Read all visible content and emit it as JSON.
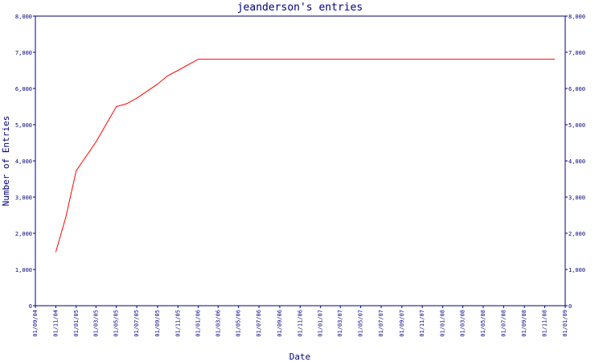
{
  "chart_data": {
    "type": "line",
    "title": "jeanderson's entries",
    "xlabel": "Date",
    "ylabel": "Number of Entries",
    "ylim": [
      0,
      8000
    ],
    "xlim": [
      "01/09/04",
      "01/01/09"
    ],
    "yticks": [
      "0",
      "1,000",
      "2,000",
      "3,000",
      "4,000",
      "5,000",
      "6,000",
      "7,000",
      "8,000"
    ],
    "xticks": [
      "01/09/04",
      "01/11/04",
      "01/01/05",
      "01/03/05",
      "01/05/05",
      "01/07/05",
      "01/09/05",
      "01/11/05",
      "01/01/06",
      "01/03/06",
      "01/05/06",
      "01/07/06",
      "01/09/06",
      "01/11/06",
      "01/01/07",
      "01/03/07",
      "01/05/07",
      "01/07/07",
      "01/09/07",
      "01/11/07",
      "01/01/08",
      "01/03/08",
      "01/05/08",
      "01/07/08",
      "01/09/08",
      "01/11/08",
      "01/01/09"
    ],
    "grid": false,
    "colors": {
      "axis": "#000080",
      "series": "#ff0000"
    },
    "series": [
      {
        "x": [
          "01/11/04",
          "01/12/04",
          "01/01/05",
          "01/03/05",
          "01/05/05",
          "01/06/05",
          "01/07/05",
          "01/09/05",
          "01/10/05",
          "01/11/05",
          "01/01/06",
          "01/01/07",
          "01/01/08",
          "01/12/08"
        ],
        "values": [
          1480,
          2450,
          3730,
          4520,
          5500,
          5580,
          5730,
          6120,
          6350,
          6500,
          6810,
          6810,
          6810,
          6810
        ]
      }
    ]
  }
}
